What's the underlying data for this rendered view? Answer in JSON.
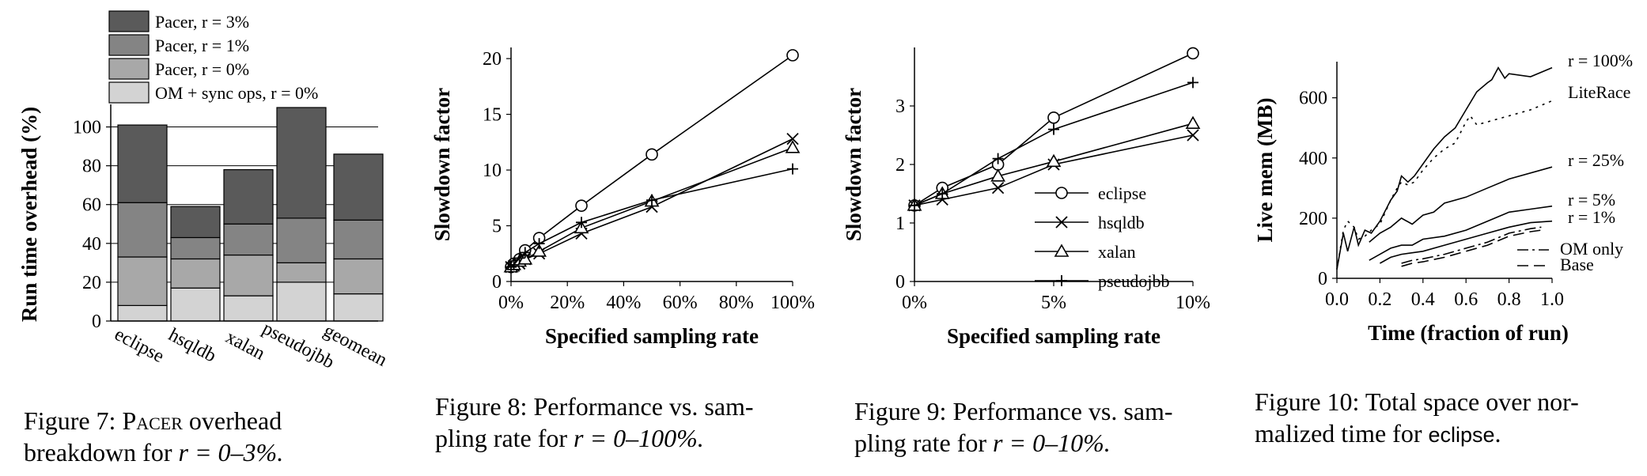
{
  "charts": [
    {
      "id": "fig7",
      "chart_data": {
        "type": "bar",
        "stacked": true,
        "categories": [
          "eclipse",
          "hsqldb",
          "xalan",
          "pseudojbb",
          "geomean"
        ],
        "ylabel": "Run time overhead (%)",
        "ylim": [
          0,
          110
        ],
        "yticks": [
          0,
          20,
          40,
          60,
          80,
          100
        ],
        "legend_position": "top",
        "series": [
          {
            "name": "OM + sync ops, r = 0%",
            "color": "#d3d3d3",
            "values": [
              8,
              17,
              13,
              20,
              14
            ]
          },
          {
            "name": "Pacer, r = 0%",
            "color": "#a8a8a8",
            "values": [
              25,
              15,
              21,
              10,
              18
            ]
          },
          {
            "name": "Pacer, r = 1%",
            "color": "#848484",
            "values": [
              28,
              11,
              16,
              23,
              20
            ]
          },
          {
            "name": "Pacer, r = 3%",
            "color": "#5a5a5a",
            "values": [
              40,
              16,
              28,
              57,
              34
            ]
          }
        ]
      },
      "caption": {
        "prefix": "Figure 7: ",
        "smallcaps": "Pacer",
        "rest": " overhead breakdown for ",
        "math": "r = 0–3%."
      }
    },
    {
      "id": "fig8",
      "chart_data": {
        "type": "line",
        "xlabel": "Specified sampling rate",
        "ylabel": "Slowdown factor",
        "xlim": [
          0,
          100
        ],
        "ylim": [
          0,
          21
        ],
        "xticks": [
          0,
          20,
          40,
          60,
          80,
          100
        ],
        "xtick_labels": [
          "0%",
          "20%",
          "40%",
          "60%",
          "80%",
          "100%"
        ],
        "yticks": [
          0,
          5,
          10,
          15,
          20
        ],
        "series": [
          {
            "name": "eclipse",
            "marker": "circle",
            "x": [
              0,
              1,
              3,
              5,
              10,
              25,
              50,
              100
            ],
            "y": [
              1.3,
              1.6,
              2.0,
              2.8,
              3.9,
              6.8,
              11.4,
              20.3
            ]
          },
          {
            "name": "hsqldb",
            "marker": "x",
            "x": [
              0,
              1,
              3,
              5,
              10,
              25,
              50,
              100
            ],
            "y": [
              1.3,
              1.4,
              1.6,
              2.0,
              2.5,
              4.3,
              6.7,
              12.8
            ]
          },
          {
            "name": "xalan",
            "marker": "triangle",
            "x": [
              0,
              1,
              3,
              5,
              10,
              25,
              50,
              100
            ],
            "y": [
              1.3,
              1.5,
              1.8,
              2.0,
              2.7,
              4.8,
              7.2,
              12.0
            ]
          },
          {
            "name": "pseudojbb",
            "marker": "plus",
            "x": [
              0,
              1,
              3,
              5,
              10,
              25,
              50,
              100
            ],
            "y": [
              1.3,
              1.5,
              2.1,
              2.6,
              3.4,
              5.3,
              7.3,
              10.1
            ]
          }
        ]
      },
      "caption": {
        "text1": "Figure 8: Performance vs. sam-",
        "text2": "pling rate for ",
        "math": "r = 0–100%."
      }
    },
    {
      "id": "fig9",
      "chart_data": {
        "type": "line",
        "xlabel": "Specified sampling rate",
        "ylabel": "Slowdown factor",
        "xlim": [
          0,
          10
        ],
        "ylim": [
          0,
          4
        ],
        "xticks": [
          0,
          5,
          10
        ],
        "xtick_labels": [
          "0%",
          "5%",
          "10%"
        ],
        "yticks": [
          0,
          1,
          2,
          3
        ],
        "legend_position": "center-right",
        "series": [
          {
            "name": "eclipse",
            "marker": "circle",
            "x": [
              0,
              1,
              3,
              5,
              10
            ],
            "y": [
              1.3,
              1.6,
              2.0,
              2.8,
              3.9
            ]
          },
          {
            "name": "hsqldb",
            "marker": "x",
            "x": [
              0,
              1,
              3,
              5,
              10
            ],
            "y": [
              1.3,
              1.4,
              1.6,
              2.0,
              2.5
            ]
          },
          {
            "name": "xalan",
            "marker": "triangle",
            "x": [
              0,
              1,
              3,
              5,
              10
            ],
            "y": [
              1.3,
              1.5,
              1.8,
              2.05,
              2.7
            ]
          },
          {
            "name": "pseudojbb",
            "marker": "plus",
            "x": [
              0,
              1,
              3,
              5,
              10
            ],
            "y": [
              1.3,
              1.5,
              2.1,
              2.6,
              3.4
            ]
          }
        ]
      },
      "caption": {
        "text1": "Figure 9: Performance vs. sam-",
        "text2": "pling rate for ",
        "math": "r = 0–10%."
      }
    },
    {
      "id": "fig10",
      "chart_data": {
        "type": "line",
        "xlabel": "Time (fraction of run)",
        "ylabel": "Live mem (MB)",
        "xlim": [
          0,
          1
        ],
        "ylim": [
          0,
          720
        ],
        "xticks": [
          0,
          0.2,
          0.4,
          0.6,
          0.8,
          1.0
        ],
        "xtick_labels": [
          "0.0",
          "0.2",
          "0.4",
          "0.6",
          "0.8",
          "1.0"
        ],
        "yticks": [
          0,
          200,
          400,
          600
        ],
        "series": [
          {
            "name": "r = 100%",
            "dash": "solid",
            "x": [
              0.0,
              0.03,
              0.05,
              0.08,
              0.1,
              0.13,
              0.16,
              0.2,
              0.25,
              0.28,
              0.3,
              0.33,
              0.36,
              0.4,
              0.45,
              0.5,
              0.55,
              0.6,
              0.65,
              0.7,
              0.72,
              0.75,
              0.78,
              0.8,
              0.9,
              1.0
            ],
            "y": [
              30,
              150,
              90,
              170,
              110,
              160,
              150,
              190,
              260,
              290,
              340,
              320,
              340,
              380,
              430,
              470,
              500,
              560,
              620,
              650,
              660,
              700,
              665,
              680,
              670,
              700
            ]
          },
          {
            "name": "LiteRace",
            "dash": "dotted",
            "x": [
              0.0,
              0.03,
              0.05,
              0.08,
              0.1,
              0.13,
              0.16,
              0.2,
              0.25,
              0.28,
              0.3,
              0.33,
              0.36,
              0.4,
              0.45,
              0.5,
              0.55,
              0.6,
              0.62,
              0.65,
              0.7,
              0.8,
              0.9,
              1.0
            ],
            "y": [
              30,
              160,
              190,
              170,
              130,
              140,
              160,
              180,
              260,
              300,
              320,
              310,
              320,
              360,
              400,
              430,
              450,
              520,
              540,
              510,
              520,
              540,
              560,
              590
            ]
          },
          {
            "name": "r = 25%",
            "dash": "solid",
            "x": [
              0.15,
              0.2,
              0.25,
              0.3,
              0.35,
              0.4,
              0.45,
              0.5,
              0.6,
              0.7,
              0.8,
              1.0
            ],
            "y": [
              120,
              150,
              170,
              200,
              180,
              210,
              220,
              250,
              270,
              300,
              330,
              370
            ]
          },
          {
            "name": "r = 5%",
            "dash": "solid",
            "x": [
              0.15,
              0.2,
              0.25,
              0.3,
              0.35,
              0.4,
              0.5,
              0.6,
              0.7,
              0.8,
              0.9,
              1.0
            ],
            "y": [
              60,
              80,
              100,
              110,
              110,
              130,
              140,
              160,
              190,
              220,
              230,
              240
            ]
          },
          {
            "name": "r = 1%",
            "dash": "solid",
            "x": [
              0.2,
              0.25,
              0.3,
              0.4,
              0.5,
              0.6,
              0.7,
              0.8,
              0.9,
              1.0
            ],
            "y": [
              50,
              70,
              80,
              90,
              110,
              130,
              150,
              170,
              185,
              190
            ]
          },
          {
            "name": "OM only",
            "dash": "dashdot",
            "x": [
              0.3,
              0.35,
              0.4,
              0.5,
              0.6,
              0.7,
              0.8,
              0.9,
              0.95
            ],
            "y": [
              50,
              60,
              65,
              80,
              100,
              120,
              150,
              165,
              170
            ]
          },
          {
            "name": "Base",
            "dash": "dashed",
            "x": [
              0.3,
              0.35,
              0.4,
              0.5,
              0.6,
              0.7,
              0.8,
              0.9,
              0.95
            ],
            "y": [
              40,
              50,
              55,
              70,
              90,
              110,
              140,
              155,
              160
            ]
          }
        ]
      },
      "caption": {
        "text1": "Figure 10: Total space over nor-",
        "text2": "malized time for ",
        "mono": "eclipse",
        "end": "."
      }
    }
  ]
}
